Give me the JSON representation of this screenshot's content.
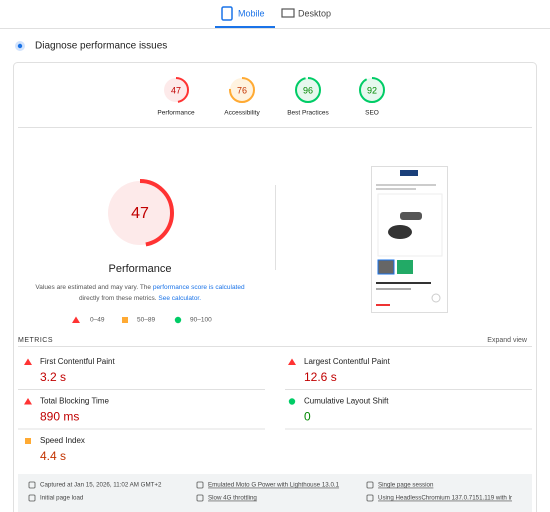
{
  "tabs": [
    "Mobile",
    "Desktop"
  ],
  "section_title": "Diagnose performance issues",
  "scores": [
    {
      "label": "Performance",
      "value": 47,
      "color": "#ff3333",
      "text_color": "#c00000",
      "bg": "#fdeaea"
    },
    {
      "label": "Accessibility",
      "value": 76,
      "color": "#ffaa33",
      "text_color": "#c33300",
      "bg": "#fff3e0"
    },
    {
      "label": "Best Practices",
      "value": 96,
      "color": "#00cc66",
      "text_color": "#008800",
      "bg": "#e6f8ee"
    },
    {
      "label": "SEO",
      "value": 92,
      "color": "#00cc66",
      "text_color": "#008800",
      "bg": "#e6f8ee"
    }
  ],
  "note": {
    "text1": "Values are estimated and may vary. The ",
    "link1": "performance score is calculated",
    "text2": "directly from these metrics. ",
    "link2": "See calculator."
  },
  "legend": [
    {
      "label": "0–49",
      "color": "#ff3333"
    },
    {
      "label": "50–89",
      "color": "#ffaa33"
    },
    {
      "label": "90–100",
      "color": "#00cc66"
    }
  ],
  "metrics_title": "METRICS",
  "expand": "Expand view",
  "metrics": [
    {
      "name": "First Contentful Paint",
      "value": "3.2 s",
      "color": "#ff3333",
      "text_color": "#c00000"
    },
    {
      "name": "Largest Contentful Paint",
      "value": "12.6 s",
      "color": "#ff3333",
      "text_color": "#c00000"
    },
    {
      "name": "Total Blocking Time",
      "value": "890 ms",
      "color": "#ff3333",
      "text_color": "#c00000"
    },
    {
      "name": "Cumulative Layout Shift",
      "value": "0",
      "color": "#00cc66",
      "text_color": "#008800"
    },
    {
      "name": "Speed Index",
      "value": "4.4 s",
      "color": "#ffaa33",
      "text_color": "#c33300"
    }
  ],
  "footer": [
    "Captured at Jan 15, 2026, 11:02 AM GMT+2",
    "Emulated Moto G Power with Lighthouse 13.0.1",
    "Single page session",
    "Initial page load",
    "Slow 4G throttling",
    "Using HeadlessChromium 137.0.7151.119 with lr"
  ]
}
